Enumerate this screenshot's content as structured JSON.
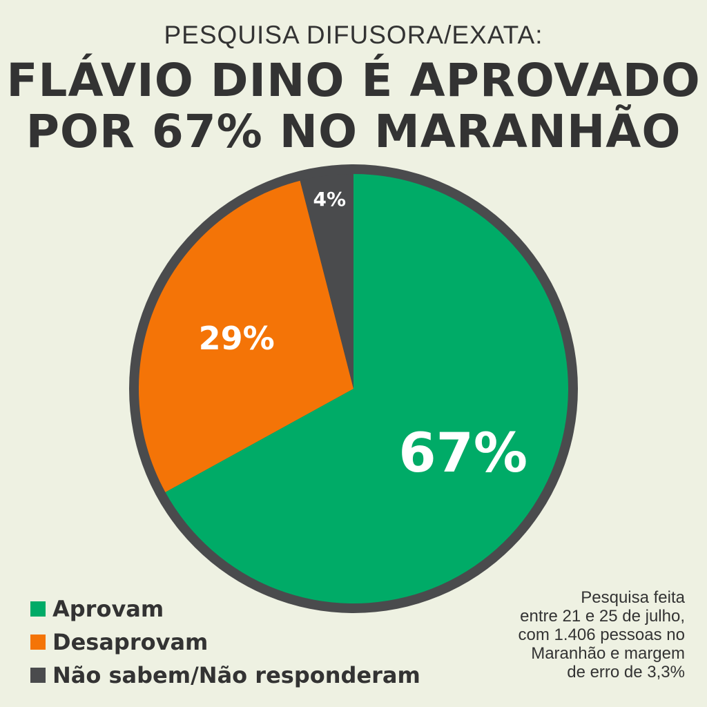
{
  "header": {
    "subtitle": "PESQUISA DIFUSORA/EXATA:",
    "title_line1": "FLÁVIO DINO É APROVADO",
    "title_line2": "POR 67% NO MARANHÃO"
  },
  "chart_data": {
    "type": "pie",
    "slices": [
      {
        "name": "Aprovam",
        "value": 67,
        "label": "67%",
        "color": "#00ab67"
      },
      {
        "name": "Desaprovam",
        "value": 29,
        "label": "29%",
        "color": "#f47407"
      },
      {
        "name": "Não sabem/Não responderam",
        "value": 4,
        "label": "4%",
        "color": "#4a4b4d"
      }
    ],
    "start_angle": "top",
    "direction": "clockwise",
    "border_color": "#4a4b4d"
  },
  "legend": {
    "items": [
      {
        "label": "Aprovam",
        "color": "#00ab67"
      },
      {
        "label": "Desaprovam",
        "color": "#f47407"
      },
      {
        "label": "Não sabem/Não responderam",
        "color": "#4a4b4d"
      }
    ]
  },
  "note": {
    "line1": "Pesquisa feita",
    "line2": "entre 21 e 25 de julho,",
    "line3": "com 1.406 pessoas no",
    "line4": "Maranhão e margem",
    "line5": "de erro de 3,3%"
  }
}
